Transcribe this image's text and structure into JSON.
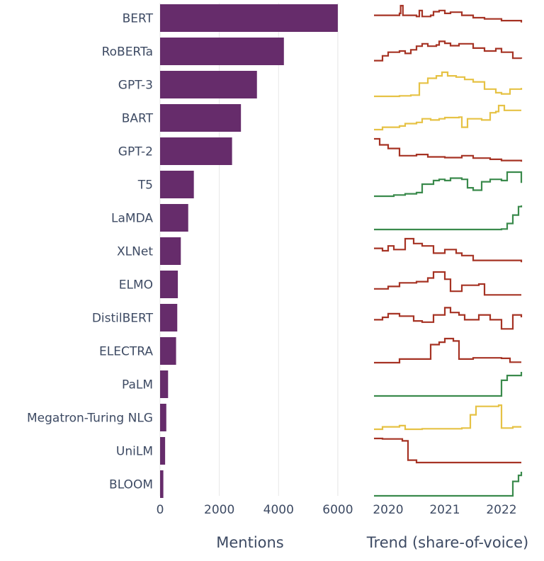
{
  "chart_data": {
    "type": "bar",
    "categories": [
      "BERT",
      "RoBERTa",
      "GPT-3",
      "BART",
      "GPT-2",
      "T5",
      "LaMDA",
      "XLNet",
      "ELMO",
      "DistilBERT",
      "ELECTRA",
      "PaLM",
      "Megatron-Turing NLG",
      "UniLM",
      "BLOOM"
    ],
    "values": [
      6000,
      4180,
      3270,
      2730,
      2430,
      1140,
      950,
      700,
      600,
      580,
      540,
      270,
      210,
      170,
      110
    ],
    "xlabel": "Mentions",
    "xlim": [
      0,
      6600
    ],
    "xticks": [
      0,
      2000,
      4000,
      6000
    ],
    "bar_color": "#662c6b",
    "grid": true,
    "trend": {
      "title": "Trend (share-of-voice)",
      "x_ticks": [
        2020,
        2021,
        2022
      ],
      "x_range": [
        2019.75,
        2022.35
      ],
      "colors": {
        "red": "#a63324",
        "yellow": "#e6c245",
        "green": "#3a8a4c"
      },
      "series": [
        {
          "category": "BERT",
          "color": "#a63324",
          "points": [
            [
              2019.75,
              0.6
            ],
            [
              2020.2,
              0.68
            ],
            [
              2020.22,
              1.0
            ],
            [
              2020.26,
              0.6
            ],
            [
              2020.5,
              0.55
            ],
            [
              2020.55,
              0.8
            ],
            [
              2020.6,
              0.55
            ],
            [
              2020.75,
              0.6
            ],
            [
              2020.8,
              0.75
            ],
            [
              2020.9,
              0.8
            ],
            [
              2021.0,
              0.68
            ],
            [
              2021.1,
              0.73
            ],
            [
              2021.3,
              0.6
            ],
            [
              2021.5,
              0.5
            ],
            [
              2021.7,
              0.45
            ],
            [
              2022.0,
              0.38
            ],
            [
              2022.35,
              0.3
            ]
          ]
        },
        {
          "category": "RoBERTa",
          "color": "#a63324",
          "points": [
            [
              2019.75,
              0.1
            ],
            [
              2019.9,
              0.3
            ],
            [
              2020.0,
              0.45
            ],
            [
              2020.2,
              0.5
            ],
            [
              2020.3,
              0.4
            ],
            [
              2020.4,
              0.55
            ],
            [
              2020.5,
              0.7
            ],
            [
              2020.6,
              0.8
            ],
            [
              2020.7,
              0.7
            ],
            [
              2020.85,
              0.75
            ],
            [
              2020.9,
              0.9
            ],
            [
              2021.0,
              0.82
            ],
            [
              2021.1,
              0.72
            ],
            [
              2021.25,
              0.8
            ],
            [
              2021.5,
              0.62
            ],
            [
              2021.7,
              0.5
            ],
            [
              2021.9,
              0.6
            ],
            [
              2022.0,
              0.45
            ],
            [
              2022.2,
              0.2
            ],
            [
              2022.35,
              0.18
            ]
          ]
        },
        {
          "category": "GPT-3",
          "color": "#e6c245",
          "points": [
            [
              2019.75,
              0.0
            ],
            [
              2020.2,
              0.02
            ],
            [
              2020.4,
              0.05
            ],
            [
              2020.55,
              0.55
            ],
            [
              2020.7,
              0.75
            ],
            [
              2020.85,
              0.85
            ],
            [
              2020.95,
              1.0
            ],
            [
              2021.05,
              0.85
            ],
            [
              2021.2,
              0.8
            ],
            [
              2021.35,
              0.7
            ],
            [
              2021.5,
              0.6
            ],
            [
              2021.7,
              0.3
            ],
            [
              2021.9,
              0.15
            ],
            [
              2022.0,
              0.1
            ],
            [
              2022.15,
              0.3
            ],
            [
              2022.35,
              0.35
            ]
          ]
        },
        {
          "category": "BART",
          "color": "#e6c245",
          "points": [
            [
              2019.75,
              0.0
            ],
            [
              2019.9,
              0.1
            ],
            [
              2020.2,
              0.15
            ],
            [
              2020.3,
              0.25
            ],
            [
              2020.5,
              0.3
            ],
            [
              2020.6,
              0.45
            ],
            [
              2020.75,
              0.4
            ],
            [
              2020.9,
              0.45
            ],
            [
              2021.0,
              0.5
            ],
            [
              2021.25,
              0.52
            ],
            [
              2021.3,
              0.1
            ],
            [
              2021.4,
              0.45
            ],
            [
              2021.65,
              0.4
            ],
            [
              2021.8,
              0.7
            ],
            [
              2021.9,
              0.75
            ],
            [
              2021.95,
              1.0
            ],
            [
              2022.05,
              0.8
            ],
            [
              2022.35,
              0.8
            ]
          ]
        },
        {
          "category": "GPT-2",
          "color": "#a63324",
          "points": [
            [
              2019.75,
              1.0
            ],
            [
              2019.85,
              0.75
            ],
            [
              2020.0,
              0.6
            ],
            [
              2020.2,
              0.3
            ],
            [
              2020.5,
              0.35
            ],
            [
              2020.7,
              0.25
            ],
            [
              2021.0,
              0.22
            ],
            [
              2021.3,
              0.3
            ],
            [
              2021.5,
              0.2
            ],
            [
              2021.8,
              0.15
            ],
            [
              2022.0,
              0.1
            ],
            [
              2022.35,
              0.05
            ]
          ]
        },
        {
          "category": "T5",
          "color": "#3a8a4c",
          "points": [
            [
              2019.75,
              0.0
            ],
            [
              2020.1,
              0.05
            ],
            [
              2020.3,
              0.1
            ],
            [
              2020.5,
              0.15
            ],
            [
              2020.6,
              0.5
            ],
            [
              2020.8,
              0.65
            ],
            [
              2020.9,
              0.7
            ],
            [
              2021.0,
              0.65
            ],
            [
              2021.1,
              0.75
            ],
            [
              2021.3,
              0.7
            ],
            [
              2021.4,
              0.35
            ],
            [
              2021.5,
              0.25
            ],
            [
              2021.65,
              0.6
            ],
            [
              2021.8,
              0.7
            ],
            [
              2022.0,
              0.65
            ],
            [
              2022.1,
              1.0
            ],
            [
              2022.35,
              1.0
            ],
            [
              2022.35,
              0.55
            ]
          ]
        },
        {
          "category": "LaMDA",
          "color": "#3a8a4c",
          "points": [
            [
              2019.75,
              0.0
            ],
            [
              2021.5,
              0.0
            ],
            [
              2022.0,
              0.02
            ],
            [
              2022.1,
              0.25
            ],
            [
              2022.2,
              0.6
            ],
            [
              2022.3,
              0.95
            ],
            [
              2022.35,
              1.0
            ]
          ]
        },
        {
          "category": "XLNet",
          "color": "#a63324",
          "points": [
            [
              2019.75,
              0.6
            ],
            [
              2019.9,
              0.5
            ],
            [
              2020.0,
              0.7
            ],
            [
              2020.1,
              0.55
            ],
            [
              2020.3,
              1.0
            ],
            [
              2020.45,
              0.8
            ],
            [
              2020.6,
              0.7
            ],
            [
              2020.8,
              0.4
            ],
            [
              2021.0,
              0.55
            ],
            [
              2021.2,
              0.4
            ],
            [
              2021.3,
              0.3
            ],
            [
              2021.5,
              0.1
            ],
            [
              2022.35,
              0.02
            ]
          ]
        },
        {
          "category": "ELMO",
          "color": "#a63324",
          "points": [
            [
              2019.75,
              0.3
            ],
            [
              2020.0,
              0.4
            ],
            [
              2020.2,
              0.55
            ],
            [
              2020.5,
              0.6
            ],
            [
              2020.7,
              0.75
            ],
            [
              2020.8,
              1.0
            ],
            [
              2021.0,
              0.7
            ],
            [
              2021.1,
              0.2
            ],
            [
              2021.3,
              0.45
            ],
            [
              2021.6,
              0.5
            ],
            [
              2021.7,
              0.05
            ],
            [
              2022.35,
              0.05
            ]
          ]
        },
        {
          "category": "DistilBERT",
          "color": "#a63324",
          "points": [
            [
              2019.75,
              0.4
            ],
            [
              2019.9,
              0.5
            ],
            [
              2020.0,
              0.65
            ],
            [
              2020.2,
              0.55
            ],
            [
              2020.45,
              0.35
            ],
            [
              2020.6,
              0.3
            ],
            [
              2020.8,
              0.6
            ],
            [
              2021.0,
              0.9
            ],
            [
              2021.1,
              0.7
            ],
            [
              2021.25,
              0.6
            ],
            [
              2021.35,
              0.4
            ],
            [
              2021.6,
              0.6
            ],
            [
              2021.8,
              0.4
            ],
            [
              2022.0,
              0.02
            ],
            [
              2022.2,
              0.6
            ],
            [
              2022.35,
              0.5
            ]
          ]
        },
        {
          "category": "ELECTRA",
          "color": "#a63324",
          "points": [
            [
              2019.75,
              0.0
            ],
            [
              2020.2,
              0.15
            ],
            [
              2020.6,
              0.15
            ],
            [
              2020.75,
              0.75
            ],
            [
              2020.9,
              0.85
            ],
            [
              2021.0,
              1.0
            ],
            [
              2021.15,
              0.9
            ],
            [
              2021.25,
              0.15
            ],
            [
              2021.5,
              0.2
            ],
            [
              2022.0,
              0.18
            ],
            [
              2022.15,
              0.02
            ],
            [
              2022.35,
              0.02
            ]
          ]
        },
        {
          "category": "PaLM",
          "color": "#3a8a4c",
          "points": [
            [
              2019.75,
              0.0
            ],
            [
              2021.95,
              0.0
            ],
            [
              2022.0,
              0.65
            ],
            [
              2022.1,
              0.85
            ],
            [
              2022.35,
              1.0
            ]
          ]
        },
        {
          "category": "Megatron-Turing NLG",
          "color": "#e6c245",
          "points": [
            [
              2019.75,
              0.0
            ],
            [
              2019.9,
              0.1
            ],
            [
              2020.2,
              0.15
            ],
            [
              2020.3,
              0.0
            ],
            [
              2020.6,
              0.02
            ],
            [
              2021.3,
              0.05
            ],
            [
              2021.45,
              0.6
            ],
            [
              2021.55,
              0.95
            ],
            [
              2021.95,
              1.0
            ],
            [
              2022.0,
              0.05
            ],
            [
              2022.2,
              0.1
            ],
            [
              2022.35,
              0.1
            ]
          ]
        },
        {
          "category": "UniLM",
          "color": "#a63324",
          "points": [
            [
              2019.75,
              1.0
            ],
            [
              2019.9,
              0.98
            ],
            [
              2020.25,
              0.9
            ],
            [
              2020.35,
              0.1
            ],
            [
              2020.5,
              0.0
            ],
            [
              2022.35,
              0.0
            ]
          ]
        },
        {
          "category": "BLOOM",
          "color": "#3a8a4c",
          "points": [
            [
              2019.75,
              0.0
            ],
            [
              2020.0,
              0.0
            ],
            [
              2022.15,
              0.0
            ],
            [
              2022.2,
              0.6
            ],
            [
              2022.3,
              0.85
            ],
            [
              2022.35,
              1.0
            ]
          ]
        }
      ]
    }
  }
}
